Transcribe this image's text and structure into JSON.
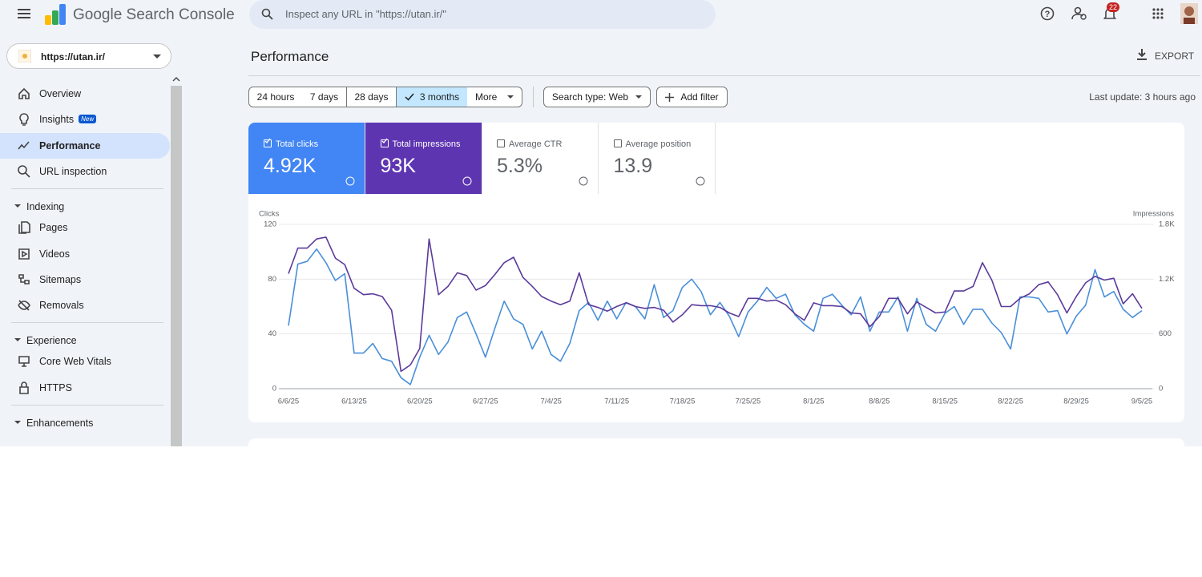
{
  "header": {
    "product": "Google Search Console",
    "search_placeholder": "Inspect any URL in \"https://utan.ir/\"",
    "notifications": "22"
  },
  "sidebar": {
    "property": "https://utan.ir/",
    "top": [
      "Overview",
      "Insights",
      "Performance",
      "URL inspection"
    ],
    "badge": "New",
    "sections": [
      {
        "title": "Indexing",
        "items": [
          "Pages",
          "Videos",
          "Sitemaps",
          "Removals"
        ]
      },
      {
        "title": "Experience",
        "items": [
          "Core Web Vitals",
          "HTTPS"
        ]
      },
      {
        "title": "Enhancements",
        "items": []
      }
    ]
  },
  "main": {
    "title": "Performance",
    "export": "EXPORT",
    "date_ranges": [
      "24 hours",
      "7 days",
      "28 days",
      "3 months",
      "More"
    ],
    "search_type": "Search type: Web",
    "add_filter": "Add filter",
    "last_update": "Last update: 3 hours ago",
    "metrics": [
      {
        "label": "Total clicks",
        "value": "4.92K"
      },
      {
        "label": "Total impressions",
        "value": "93K"
      },
      {
        "label": "Average CTR",
        "value": "5.3%"
      },
      {
        "label": "Average position",
        "value": "13.9"
      }
    ]
  },
  "chart_data": {
    "type": "line",
    "y_label": "Clicks",
    "y2_label": "Impressions",
    "categories": [
      "6/6/25",
      null,
      null,
      null,
      null,
      null,
      null,
      "6/13/25",
      null,
      null,
      null,
      null,
      null,
      null,
      "6/20/25",
      null,
      null,
      null,
      null,
      null,
      null,
      "6/27/25",
      null,
      null,
      null,
      null,
      null,
      null,
      "7/4/25",
      null,
      null,
      null,
      null,
      null,
      null,
      "7/11/25",
      null,
      null,
      null,
      null,
      null,
      null,
      "7/18/25",
      null,
      null,
      null,
      null,
      null,
      null,
      "7/25/25",
      null,
      null,
      null,
      null,
      null,
      null,
      "8/1/25",
      null,
      null,
      null,
      null,
      null,
      null,
      "8/8/25",
      null,
      null,
      null,
      null,
      null,
      null,
      "8/15/25",
      null,
      null,
      null,
      null,
      null,
      null,
      "8/22/25",
      null,
      null,
      null,
      null,
      null,
      null,
      "8/29/25",
      null,
      null,
      null,
      null,
      null,
      null,
      "9/5/25"
    ],
    "series": [
      {
        "name": "Clicks",
        "color": "#4a8fd8",
        "values": [
          46,
          91,
          93,
          102,
          92,
          79,
          84,
          26,
          26,
          33,
          22,
          20,
          8,
          3,
          23,
          39,
          25,
          34,
          52,
          56,
          40,
          23,
          44,
          64,
          51,
          47,
          29,
          42,
          25,
          20,
          33,
          57,
          63,
          50,
          64,
          51,
          63,
          60,
          51,
          76,
          52,
          57,
          74,
          80,
          71,
          54,
          63,
          53,
          38,
          56,
          64,
          74,
          66,
          69,
          54,
          47,
          42,
          66,
          69,
          61,
          54,
          67,
          42,
          56,
          56,
          67,
          42,
          66,
          47,
          42,
          55,
          60,
          47,
          58,
          58,
          48,
          41,
          29,
          67,
          67,
          66,
          56,
          57,
          40,
          53,
          61,
          87,
          67,
          71,
          58,
          52,
          57
        ]
      },
      {
        "name": "Impressions",
        "color": "#5b3a9b",
        "axis": "y2",
        "values": [
          1260,
          1540,
          1540,
          1640,
          1660,
          1430,
          1360,
          1100,
          1030,
          1040,
          1010,
          860,
          190,
          260,
          440,
          1640,
          1030,
          1120,
          1270,
          1240,
          1080,
          1130,
          1250,
          1380,
          1440,
          1220,
          1120,
          1010,
          960,
          920,
          960,
          1270,
          920,
          890,
          850,
          900,
          940,
          900,
          880,
          890,
          860,
          730,
          810,
          920,
          910,
          910,
          890,
          830,
          790,
          990,
          990,
          960,
          970,
          920,
          820,
          750,
          940,
          910,
          910,
          900,
          830,
          820,
          680,
          790,
          990,
          990,
          820,
          950,
          890,
          830,
          840,
          1070,
          1070,
          1120,
          1380,
          1190,
          900,
          900,
          990,
          1040,
          1140,
          1170,
          1030,
          830,
          1010,
          1160,
          1230,
          1190,
          1210,
          930,
          1040,
          880
        ]
      }
    ],
    "ylim": [
      0,
      120
    ],
    "yticks": [
      0,
      40,
      80,
      120
    ],
    "y2lim": [
      0,
      1800
    ],
    "y2ticks": [
      0,
      600,
      {
        "value": 1200,
        "label": "1.2K"
      },
      {
        "value": 1800,
        "label": "1.8K"
      }
    ],
    "grid": true
  }
}
